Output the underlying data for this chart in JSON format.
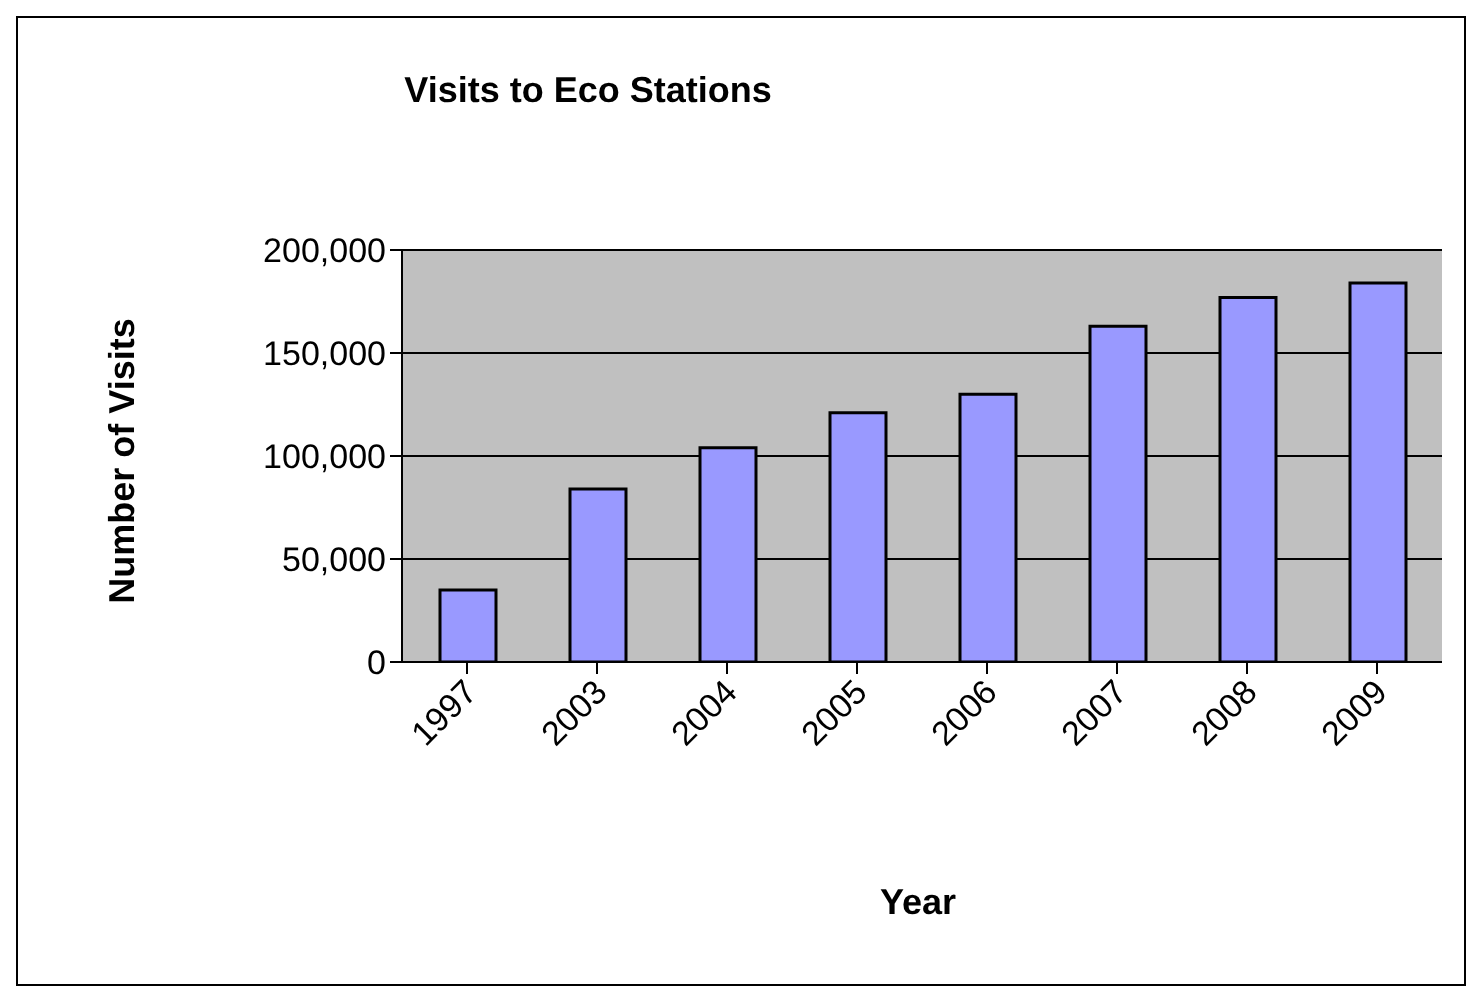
{
  "chart_data": {
    "type": "bar",
    "title": "Visits to Eco Stations",
    "xlabel": "Year",
    "ylabel": "Number of Visits",
    "categories": [
      "1997",
      "2003",
      "2004",
      "2005",
      "2006",
      "2007",
      "2008",
      "2009"
    ],
    "values": [
      35000,
      84000,
      104000,
      121000,
      130000,
      163000,
      177000,
      184000
    ],
    "color": "#9999ff",
    "ylim": [
      0,
      200000
    ],
    "yticks": [
      {
        "value": 0,
        "label": "0"
      },
      {
        "value": 50000,
        "label": "50,000"
      },
      {
        "value": 100000,
        "label": "100,000"
      },
      {
        "value": 150000,
        "label": "150,000"
      },
      {
        "value": 200000,
        "label": "200,000"
      }
    ],
    "grid": "y",
    "legend": false
  }
}
